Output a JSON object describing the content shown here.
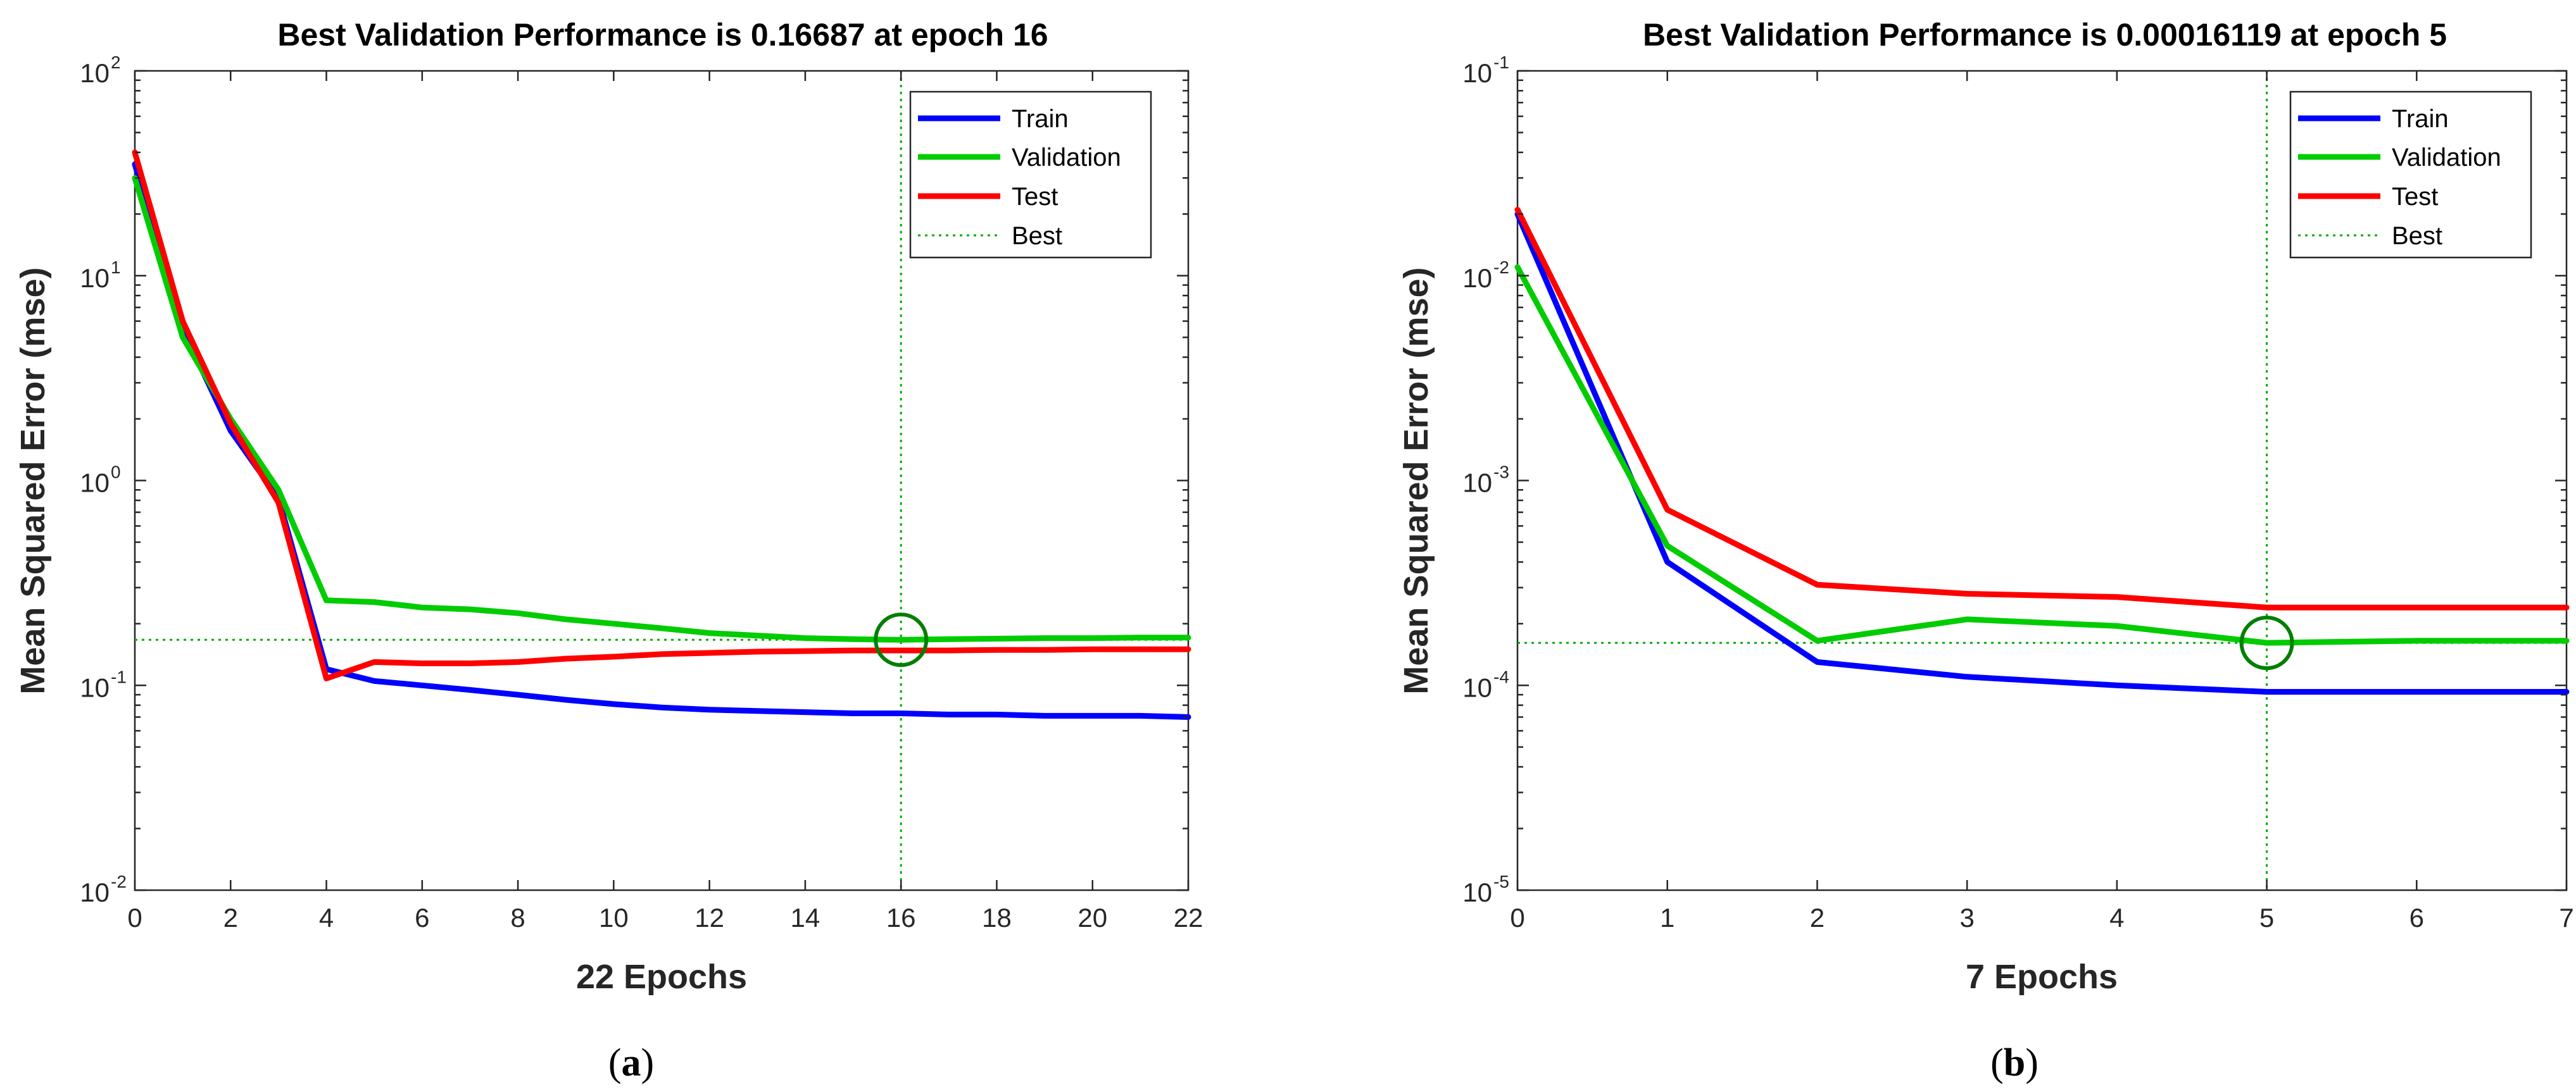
{
  "colors": {
    "train": "#0000ff",
    "validation": "#00cc00",
    "test": "#ff0000",
    "best": "#00aa00",
    "marker": "#007f00"
  },
  "chart_data": [
    {
      "type": "line",
      "panel_label": "a",
      "title": "Best Validation Performance is 0.16687 at epoch 16",
      "xlabel": "22 Epochs",
      "ylabel": "Mean Squared Error  (mse)",
      "y_scale": "log",
      "xlim": [
        0,
        22
      ],
      "ylim_exp": [
        -2,
        2
      ],
      "x_ticks": [
        0,
        2,
        4,
        6,
        8,
        10,
        12,
        14,
        16,
        18,
        20,
        22
      ],
      "x_tick_labels": [
        "0",
        "2",
        "4",
        "6",
        "8",
        "10",
        "12",
        "14",
        "16",
        "18",
        "20",
        "22"
      ],
      "y_tick_exponents": [
        -2,
        -1,
        0,
        1,
        2
      ],
      "y_tick_labels": [
        {
          "base": "10",
          "exp": "-2"
        },
        {
          "base": "10",
          "exp": "-1"
        },
        {
          "base": "10",
          "exp": "0"
        },
        {
          "base": "10",
          "exp": "1"
        },
        {
          "base": "10",
          "exp": "2"
        }
      ],
      "legend_position": "top-right",
      "legend": {
        "train": "Train",
        "validation": "Validation",
        "test": "Test",
        "best": "Best"
      },
      "series": [
        {
          "name": "Train",
          "key": "train",
          "x": [
            0,
            1,
            2,
            3,
            4,
            5,
            6,
            7,
            8,
            9,
            10,
            11,
            12,
            13,
            14,
            15,
            16,
            17,
            18,
            19,
            20,
            21,
            22
          ],
          "values": [
            35,
            5.5,
            1.75,
            0.82,
            0.12,
            0.105,
            0.1,
            0.095,
            0.09,
            0.085,
            0.081,
            0.078,
            0.076,
            0.075,
            0.074,
            0.073,
            0.073,
            0.072,
            0.072,
            0.071,
            0.071,
            0.071,
            0.07
          ]
        },
        {
          "name": "Validation",
          "key": "validation",
          "x": [
            0,
            1,
            2,
            3,
            4,
            5,
            6,
            7,
            8,
            9,
            10,
            11,
            12,
            13,
            14,
            15,
            16,
            17,
            18,
            19,
            20,
            21,
            22
          ],
          "values": [
            30,
            5,
            2,
            0.9,
            0.26,
            0.255,
            0.24,
            0.235,
            0.225,
            0.21,
            0.2,
            0.19,
            0.18,
            0.175,
            0.17,
            0.168,
            0.16687,
            0.168,
            0.169,
            0.17,
            0.17,
            0.171,
            0.171
          ]
        },
        {
          "name": "Test",
          "key": "test",
          "x": [
            0,
            1,
            2,
            3,
            4,
            5,
            6,
            7,
            8,
            9,
            10,
            11,
            12,
            13,
            14,
            15,
            16,
            17,
            18,
            19,
            20,
            21,
            22
          ],
          "values": [
            40,
            6,
            1.9,
            0.78,
            0.108,
            0.13,
            0.128,
            0.128,
            0.13,
            0.135,
            0.138,
            0.142,
            0.144,
            0.146,
            0.147,
            0.148,
            0.148,
            0.148,
            0.149,
            0.149,
            0.15,
            0.15,
            0.15
          ]
        }
      ],
      "best": {
        "epoch": 16,
        "value": 0.16687
      }
    },
    {
      "type": "line",
      "panel_label": "b",
      "title": "Best Validation Performance is 0.00016119 at epoch 5",
      "xlabel": "7 Epochs",
      "ylabel": "Mean Squared Error  (mse)",
      "y_scale": "log",
      "xlim": [
        0,
        7
      ],
      "ylim_exp": [
        -5,
        -1
      ],
      "x_ticks": [
        0,
        1,
        2,
        3,
        4,
        5,
        6,
        7
      ],
      "x_tick_labels": [
        "0",
        "1",
        "2",
        "3",
        "4",
        "5",
        "6",
        "7"
      ],
      "y_tick_exponents": [
        -5,
        -4,
        -3,
        -2,
        -1
      ],
      "y_tick_labels": [
        {
          "base": "10",
          "exp": "-5"
        },
        {
          "base": "10",
          "exp": "-4"
        },
        {
          "base": "10",
          "exp": "-3"
        },
        {
          "base": "10",
          "exp": "-2"
        },
        {
          "base": "10",
          "exp": "-1"
        }
      ],
      "legend_position": "top-right",
      "legend": {
        "train": "Train",
        "validation": "Validation",
        "test": "Test",
        "best": "Best"
      },
      "series": [
        {
          "name": "Train",
          "key": "train",
          "x": [
            0,
            1,
            2,
            3,
            4,
            5,
            6,
            7
          ],
          "values": [
            0.02,
            0.0004,
            0.00013,
            0.00011,
            0.0001,
            9.3e-05,
            9.3e-05,
            9.3e-05
          ]
        },
        {
          "name": "Validation",
          "key": "validation",
          "x": [
            0,
            1,
            2,
            3,
            4,
            5,
            6,
            7
          ],
          "values": [
            0.011,
            0.00048,
            0.000165,
            0.00021,
            0.000195,
            0.00016119,
            0.000165,
            0.000165
          ]
        },
        {
          "name": "Test",
          "key": "test",
          "x": [
            0,
            1,
            2,
            3,
            4,
            5,
            6,
            7
          ],
          "values": [
            0.021,
            0.00072,
            0.00031,
            0.00028,
            0.00027,
            0.00024,
            0.00024,
            0.00024
          ]
        }
      ],
      "best": {
        "epoch": 5,
        "value": 0.00016119
      }
    }
  ]
}
